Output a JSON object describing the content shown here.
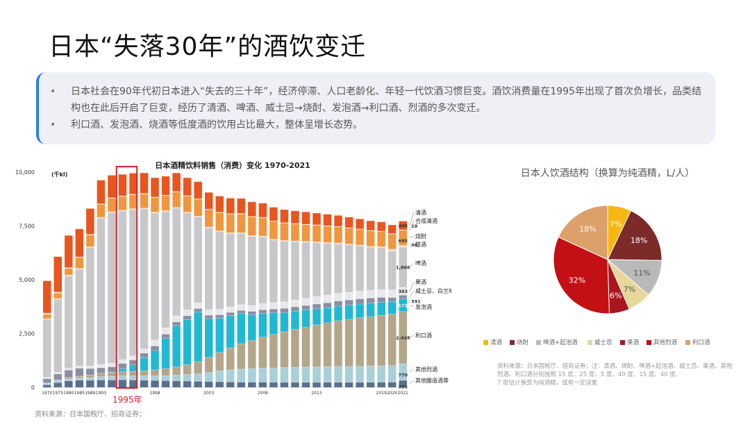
{
  "page": {
    "title": "日本“失落30年”的酒饮变迁",
    "bullets": [
      "日本社会在90年代初日本进入“失去的三十年”，经济停滞、人口老龄化、年轻一代饮酒习惯巨变。酒饮消费量在1995年出现了首次负增长，品类结构也在此后开启了巨变，经历了清酒、啤酒、威士忌→烧酎、发泡酒→利口酒、烈酒的多次变迁。",
      "利口酒、发泡酒、烧酒等低度酒的饮用占比最大，整体呈增长态势。"
    ],
    "bullet_symbol": "•",
    "source_left": "资料来源：日本国税厅、招商证券；"
  },
  "chart_data": [
    {
      "type": "bar",
      "stacked": true,
      "title": "日本酒精饮料销售（消费）变化 1970-2021",
      "unit_label": "(千kl)",
      "ylim": [
        0,
        10000
      ],
      "yticks": [
        "10,000",
        "7,500",
        "5,000",
        "2,500",
        "0"
      ],
      "ytick_values": [
        10000,
        7500,
        5000,
        2500,
        0
      ],
      "xtick_labels": [
        "1970",
        "1975",
        "1980",
        "1985",
        "1989",
        "1993",
        "1998",
        "2003",
        "2008",
        "2013",
        "2019",
        "2020",
        "2021"
      ],
      "xtick_indices": [
        0,
        1,
        2,
        3,
        4,
        5,
        10,
        15,
        20,
        25,
        31,
        32,
        33
      ],
      "highlight_index": 7,
      "highlight_label": "1995年",
      "highlight_color": "#d9202a",
      "categories": [
        "1970",
        "1975",
        "1980",
        "1985",
        "1989",
        "1993",
        "1994",
        "1995",
        "1996",
        "1997",
        "1998",
        "1999",
        "2000",
        "2001",
        "2002",
        "2003",
        "2004",
        "2005",
        "2006",
        "2007",
        "2008",
        "2009",
        "2010",
        "2011",
        "2012",
        "2013",
        "2014",
        "2015",
        "2016",
        "2017",
        "2018",
        "2019",
        "2020",
        "2021"
      ],
      "series": [
        {
          "name": "其他酿造酒等",
          "color": "#5a6f8e",
          "values": [
            120,
            220,
            300,
            330,
            330,
            340,
            340,
            350,
            340,
            330,
            320,
            310,
            300,
            290,
            280,
            270,
            260,
            250,
            240,
            240,
            240,
            230,
            230,
            230,
            230,
            230,
            230,
            230,
            230,
            230,
            230,
            230,
            240,
            321
          ]
        },
        {
          "name": "其他烈酒",
          "color": "#a9cfd8",
          "values": [
            60,
            80,
            90,
            100,
            120,
            160,
            170,
            180,
            190,
            200,
            210,
            230,
            260,
            300,
            350,
            420,
            500,
            560,
            600,
            630,
            650,
            670,
            690,
            700,
            710,
            720,
            730,
            740,
            740,
            750,
            760,
            770,
            770,
            770
          ]
        },
        {
          "name": "利口酒",
          "color": "#b3a68a",
          "values": [
            20,
            40,
            60,
            80,
            120,
            150,
            170,
            190,
            210,
            240,
            280,
            330,
            390,
            460,
            560,
            700,
            860,
            1020,
            1180,
            1300,
            1440,
            1560,
            1660,
            1760,
            1850,
            1950,
            2040,
            2120,
            2190,
            2250,
            2300,
            2350,
            2390,
            2428
          ]
        },
        {
          "name": "发泡酒",
          "color": "#22b8d3",
          "values": [
            0,
            0,
            0,
            0,
            0,
            0,
            20,
            150,
            300,
            600,
            900,
            1400,
            1900,
            2100,
            2300,
            1800,
            1600,
            1500,
            1400,
            1200,
            1100,
            1000,
            900,
            850,
            800,
            750,
            700,
            680,
            660,
            640,
            620,
            600,
            590,
            591
          ]
        },
        {
          "name": "威士忌、白兰地",
          "color": "#8a8fa3",
          "values": [
            200,
            280,
            350,
            380,
            300,
            260,
            250,
            240,
            230,
            220,
            210,
            200,
            190,
            180,
            170,
            160,
            150,
            150,
            150,
            160,
            170,
            180,
            190,
            200,
            210,
            220,
            230,
            240,
            240,
            240,
            240,
            230,
            180,
            173
          ]
        },
        {
          "name": "果酒",
          "color": "#e8e8ea",
          "values": [
            60,
            70,
            80,
            100,
            120,
            150,
            170,
            180,
            190,
            200,
            280,
            300,
            280,
            270,
            260,
            260,
            260,
            260,
            270,
            280,
            290,
            300,
            310,
            320,
            340,
            350,
            360,
            360,
            360,
            360,
            360,
            360,
            363,
            363
          ]
        },
        {
          "name": "啤酒",
          "color": "#c8c8cb",
          "values": [
            2700,
            3400,
            4300,
            4500,
            5500,
            6800,
            7000,
            6900,
            6800,
            6500,
            5900,
            5400,
            5000,
            4500,
            4000,
            3800,
            3600,
            3400,
            3300,
            3200,
            3100,
            2900,
            2800,
            2700,
            2600,
            2500,
            2400,
            2300,
            2200,
            2100,
            2000,
            1950,
            1800,
            1866
          ]
        },
        {
          "name": "甜酒",
          "color": "#f2dcc8",
          "values": [
            30,
            35,
            40,
            40,
            40,
            40,
            40,
            40,
            40,
            40,
            40,
            40,
            40,
            40,
            40,
            40,
            40,
            40,
            40,
            40,
            40,
            40,
            40,
            40,
            40,
            40,
            40,
            40,
            40,
            40,
            40,
            40,
            90,
            90
          ]
        },
        {
          "name": "烧酎",
          "color": "#f0963e",
          "values": [
            200,
            250,
            300,
            500,
            550,
            600,
            620,
            640,
            650,
            660,
            680,
            700,
            720,
            750,
            780,
            810,
            850,
            870,
            880,
            870,
            850,
            830,
            810,
            790,
            780,
            770,
            760,
            750,
            740,
            730,
            720,
            710,
            700,
            695
          ]
        },
        {
          "name": "合成清酒",
          "color": "#fbe1cc",
          "values": [
            60,
            50,
            40,
            30,
            30,
            25,
            25,
            25,
            25,
            25,
            20,
            20,
            20,
            20,
            20,
            20,
            20,
            20,
            20,
            20,
            20,
            20,
            20,
            20,
            20,
            20,
            20,
            20,
            18,
            18,
            18,
            18,
            18,
            18
          ]
        },
        {
          "name": "清酒",
          "color": "#e8551f",
          "values": [
            1500,
            1650,
            1500,
            1300,
            1200,
            1100,
            1050,
            1000,
            980,
            950,
            900,
            880,
            860,
            830,
            800,
            780,
            750,
            720,
            700,
            680,
            660,
            640,
            610,
            590,
            570,
            550,
            530,
            510,
            490,
            470,
            450,
            430,
            410,
            408
          ]
        }
      ],
      "right_labels": [
        "清酒",
        "合成清酒",
        "烧酎",
        "甜酒",
        "啤酒",
        "果酒",
        "威士忌、白兰地",
        "发泡酒",
        "利口酒",
        "其他烈酒",
        "其他酿造酒等"
      ],
      "value_labels": [
        "408",
        "18",
        "695",
        "90",
        "1,866",
        "363",
        "591",
        "173",
        "2,428",
        "770",
        "321"
      ]
    },
    {
      "type": "pie",
      "title": "日本人饮酒结构（换算为纯酒精，L/人）",
      "slices": [
        {
          "label": "清酒",
          "value": 7,
          "color": "#f7b712"
        },
        {
          "label": "烧酎",
          "value": 18,
          "color": "#7c2a2a"
        },
        {
          "label": "啤酒+起泡酒",
          "value": 11,
          "color": "#b9b9b9"
        },
        {
          "label": "威士忌",
          "value": 7,
          "color": "#e6d79a"
        },
        {
          "label": "果酒",
          "value": 6,
          "color": "#a8171d"
        },
        {
          "label": "其他烈酒",
          "value": 32,
          "color": "#c31014"
        },
        {
          "label": "利口酒",
          "value": 18,
          "color": "#dca06a"
        }
      ],
      "slice_labels": [
        "7%",
        "18%",
        "11%",
        "7%",
        "6%",
        "32%",
        "18%"
      ],
      "source": "资料来源：日本国税厅、招商证券；注：清酒、烧酎、啤酒+起泡酒、威士忌、果酒、其他烈酒、利口酒分别按照 15 度、25 度、5 度、40 度、15 度、40 度、7 度估计换算为纯酒精，或有一定误差"
    }
  ]
}
